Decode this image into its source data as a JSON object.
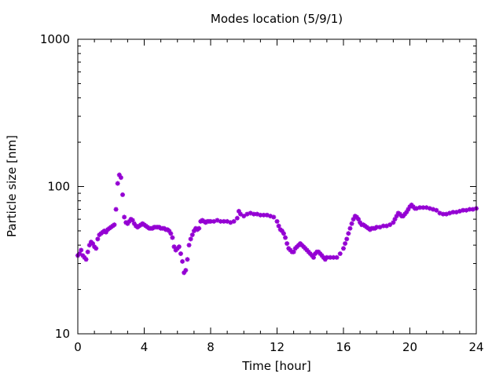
{
  "chart_data": {
    "type": "scatter",
    "title": "Modes location (5/9/1)",
    "xlabel": "Time [hour]",
    "ylabel": "Particle size [nm]",
    "xlim": [
      0,
      24
    ],
    "ylim": [
      10,
      1000
    ],
    "yscale": "log",
    "grid": false,
    "legend": "none",
    "marker_color": "#9400d3",
    "x_ticks": [
      {
        "value": 0,
        "label": "0"
      },
      {
        "value": 4,
        "label": "4"
      },
      {
        "value": 8,
        "label": "8"
      },
      {
        "value": 12,
        "label": "12"
      },
      {
        "value": 16,
        "label": "16"
      },
      {
        "value": 20,
        "label": "20"
      },
      {
        "value": 24,
        "label": "24"
      }
    ],
    "y_ticks": [
      {
        "value": 10,
        "label": "10"
      },
      {
        "value": 100,
        "label": "100"
      },
      {
        "value": 1000,
        "label": "1000"
      }
    ],
    "series": [
      {
        "points": [
          [
            0.0,
            34
          ],
          [
            0.1,
            35
          ],
          [
            0.2,
            37
          ],
          [
            0.3,
            34
          ],
          [
            0.4,
            33
          ],
          [
            0.5,
            32
          ],
          [
            0.6,
            36
          ],
          [
            0.7,
            40
          ],
          [
            0.8,
            42
          ],
          [
            0.9,
            41
          ],
          [
            1.0,
            39
          ],
          [
            1.1,
            38
          ],
          [
            1.2,
            44
          ],
          [
            1.3,
            47
          ],
          [
            1.4,
            48
          ],
          [
            1.5,
            49
          ],
          [
            1.6,
            50
          ],
          [
            1.7,
            49
          ],
          [
            1.8,
            51
          ],
          [
            1.9,
            52
          ],
          [
            2.0,
            53
          ],
          [
            2.1,
            54
          ],
          [
            2.2,
            55
          ],
          [
            2.3,
            70
          ],
          [
            2.4,
            105
          ],
          [
            2.5,
            120
          ],
          [
            2.6,
            115
          ],
          [
            2.7,
            88
          ],
          [
            2.8,
            62
          ],
          [
            2.9,
            57
          ],
          [
            3.0,
            56
          ],
          [
            3.1,
            58
          ],
          [
            3.2,
            60
          ],
          [
            3.3,
            59
          ],
          [
            3.4,
            56
          ],
          [
            3.5,
            54
          ],
          [
            3.6,
            53
          ],
          [
            3.7,
            54
          ],
          [
            3.8,
            55
          ],
          [
            3.9,
            56
          ],
          [
            4.0,
            55
          ],
          [
            4.1,
            54
          ],
          [
            4.2,
            53
          ],
          [
            4.3,
            52
          ],
          [
            4.4,
            52
          ],
          [
            4.5,
            52
          ],
          [
            4.6,
            53
          ],
          [
            4.7,
            53
          ],
          [
            4.8,
            53
          ],
          [
            4.9,
            53
          ],
          [
            5.0,
            52
          ],
          [
            5.1,
            52
          ],
          [
            5.2,
            52
          ],
          [
            5.3,
            51
          ],
          [
            5.4,
            51
          ],
          [
            5.5,
            50
          ],
          [
            5.6,
            48
          ],
          [
            5.7,
            45
          ],
          [
            5.8,
            39
          ],
          [
            5.9,
            37
          ],
          [
            6.0,
            38
          ],
          [
            6.1,
            39
          ],
          [
            6.2,
            35
          ],
          [
            6.3,
            31
          ],
          [
            6.4,
            26
          ],
          [
            6.5,
            27
          ],
          [
            6.6,
            32
          ],
          [
            6.7,
            40
          ],
          [
            6.8,
            44
          ],
          [
            6.9,
            47
          ],
          [
            7.0,
            50
          ],
          [
            7.1,
            52
          ],
          [
            7.2,
            51
          ],
          [
            7.3,
            52
          ],
          [
            7.4,
            58
          ],
          [
            7.5,
            59
          ],
          [
            7.6,
            58
          ],
          [
            7.7,
            57
          ],
          [
            7.8,
            58
          ],
          [
            7.9,
            58
          ],
          [
            8.0,
            58
          ],
          [
            8.2,
            58
          ],
          [
            8.4,
            59
          ],
          [
            8.6,
            58
          ],
          [
            8.8,
            58
          ],
          [
            9.0,
            58
          ],
          [
            9.2,
            57
          ],
          [
            9.4,
            58
          ],
          [
            9.6,
            61
          ],
          [
            9.7,
            68
          ],
          [
            9.8,
            65
          ],
          [
            10.0,
            63
          ],
          [
            10.2,
            65
          ],
          [
            10.4,
            66
          ],
          [
            10.6,
            65
          ],
          [
            10.8,
            65
          ],
          [
            11.0,
            64
          ],
          [
            11.2,
            64
          ],
          [
            11.4,
            64
          ],
          [
            11.6,
            63
          ],
          [
            11.8,
            62
          ],
          [
            12.0,
            58
          ],
          [
            12.1,
            54
          ],
          [
            12.2,
            51
          ],
          [
            12.3,
            50
          ],
          [
            12.4,
            48
          ],
          [
            12.5,
            45
          ],
          [
            12.6,
            41
          ],
          [
            12.7,
            38
          ],
          [
            12.8,
            37
          ],
          [
            12.9,
            36
          ],
          [
            13.0,
            36
          ],
          [
            13.1,
            38
          ],
          [
            13.2,
            39
          ],
          [
            13.3,
            40
          ],
          [
            13.4,
            41
          ],
          [
            13.5,
            40
          ],
          [
            13.6,
            39
          ],
          [
            13.7,
            38
          ],
          [
            13.8,
            37
          ],
          [
            13.9,
            36
          ],
          [
            14.0,
            35
          ],
          [
            14.1,
            34
          ],
          [
            14.2,
            33
          ],
          [
            14.3,
            35
          ],
          [
            14.4,
            36
          ],
          [
            14.5,
            36
          ],
          [
            14.6,
            35
          ],
          [
            14.7,
            34
          ],
          [
            14.8,
            33
          ],
          [
            14.9,
            32
          ],
          [
            15.0,
            33
          ],
          [
            15.2,
            33
          ],
          [
            15.4,
            33
          ],
          [
            15.6,
            33
          ],
          [
            15.8,
            35
          ],
          [
            16.0,
            38
          ],
          [
            16.1,
            41
          ],
          [
            16.2,
            44
          ],
          [
            16.3,
            48
          ],
          [
            16.4,
            52
          ],
          [
            16.5,
            56
          ],
          [
            16.6,
            60
          ],
          [
            16.7,
            63
          ],
          [
            16.8,
            62
          ],
          [
            16.9,
            60
          ],
          [
            17.0,
            57
          ],
          [
            17.1,
            55
          ],
          [
            17.2,
            55
          ],
          [
            17.3,
            54
          ],
          [
            17.4,
            53
          ],
          [
            17.5,
            52
          ],
          [
            17.6,
            51
          ],
          [
            17.7,
            52
          ],
          [
            17.8,
            52
          ],
          [
            17.9,
            52
          ],
          [
            18.0,
            53
          ],
          [
            18.2,
            53
          ],
          [
            18.4,
            54
          ],
          [
            18.6,
            54
          ],
          [
            18.8,
            55
          ],
          [
            19.0,
            57
          ],
          [
            19.1,
            60
          ],
          [
            19.2,
            63
          ],
          [
            19.3,
            66
          ],
          [
            19.4,
            65
          ],
          [
            19.5,
            63
          ],
          [
            19.6,
            63
          ],
          [
            19.7,
            65
          ],
          [
            19.8,
            67
          ],
          [
            19.9,
            70
          ],
          [
            20.0,
            73
          ],
          [
            20.1,
            75
          ],
          [
            20.2,
            73
          ],
          [
            20.3,
            71
          ],
          [
            20.4,
            71
          ],
          [
            20.6,
            72
          ],
          [
            20.8,
            72
          ],
          [
            21.0,
            72
          ],
          [
            21.2,
            71
          ],
          [
            21.4,
            70
          ],
          [
            21.6,
            69
          ],
          [
            21.8,
            66
          ],
          [
            22.0,
            65
          ],
          [
            22.2,
            65
          ],
          [
            22.4,
            66
          ],
          [
            22.6,
            67
          ],
          [
            22.8,
            67
          ],
          [
            23.0,
            68
          ],
          [
            23.2,
            69
          ],
          [
            23.4,
            69
          ],
          [
            23.6,
            70
          ],
          [
            23.8,
            70
          ],
          [
            24.0,
            71
          ]
        ]
      }
    ]
  }
}
